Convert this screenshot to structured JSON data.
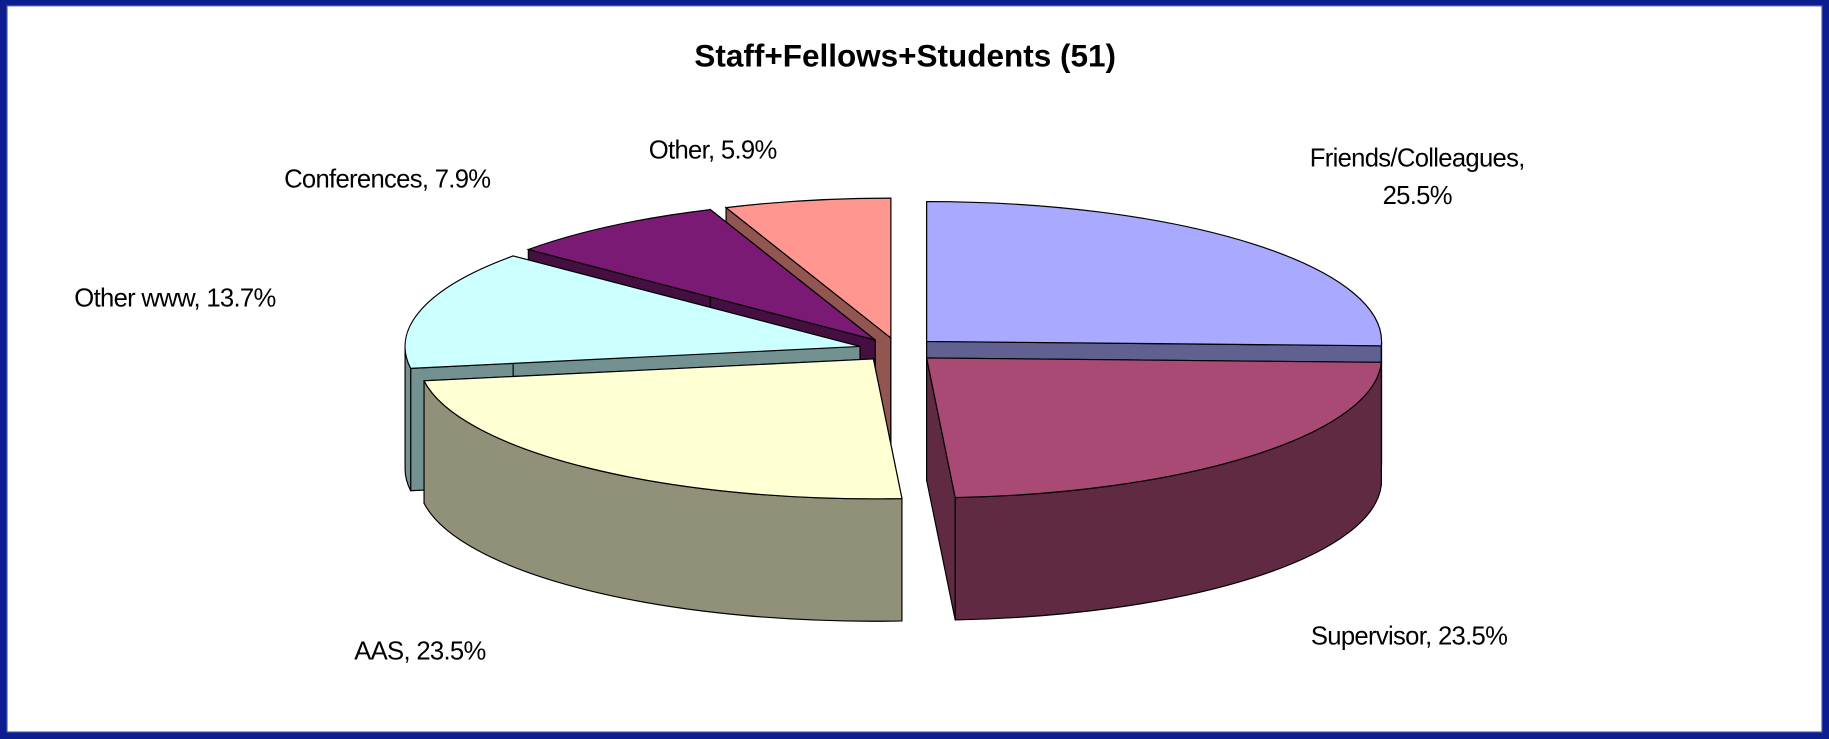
{
  "chart_data": {
    "type": "pie3d",
    "title": "Staff+Fellows+Students (51)",
    "categories": [
      "Friends/Colleagues",
      "Supervisor",
      "AAS",
      "Other www",
      "Conferences",
      "Other"
    ],
    "values": [
      25.5,
      23.5,
      23.5,
      13.7,
      7.9,
      5.9
    ],
    "value_labels": [
      "Friends/Colleagues, 25.5%",
      "Supervisor, 23.5%",
      "AAS, 23.5%",
      "Other www, 13.7%",
      "Conferences, 7.9%",
      "Other, 5.9%"
    ],
    "colors": [
      "#a9a9ff",
      "#a84a74",
      "#ffffd4",
      "#ccffff",
      "#7a1a74",
      "#ff9690"
    ]
  }
}
